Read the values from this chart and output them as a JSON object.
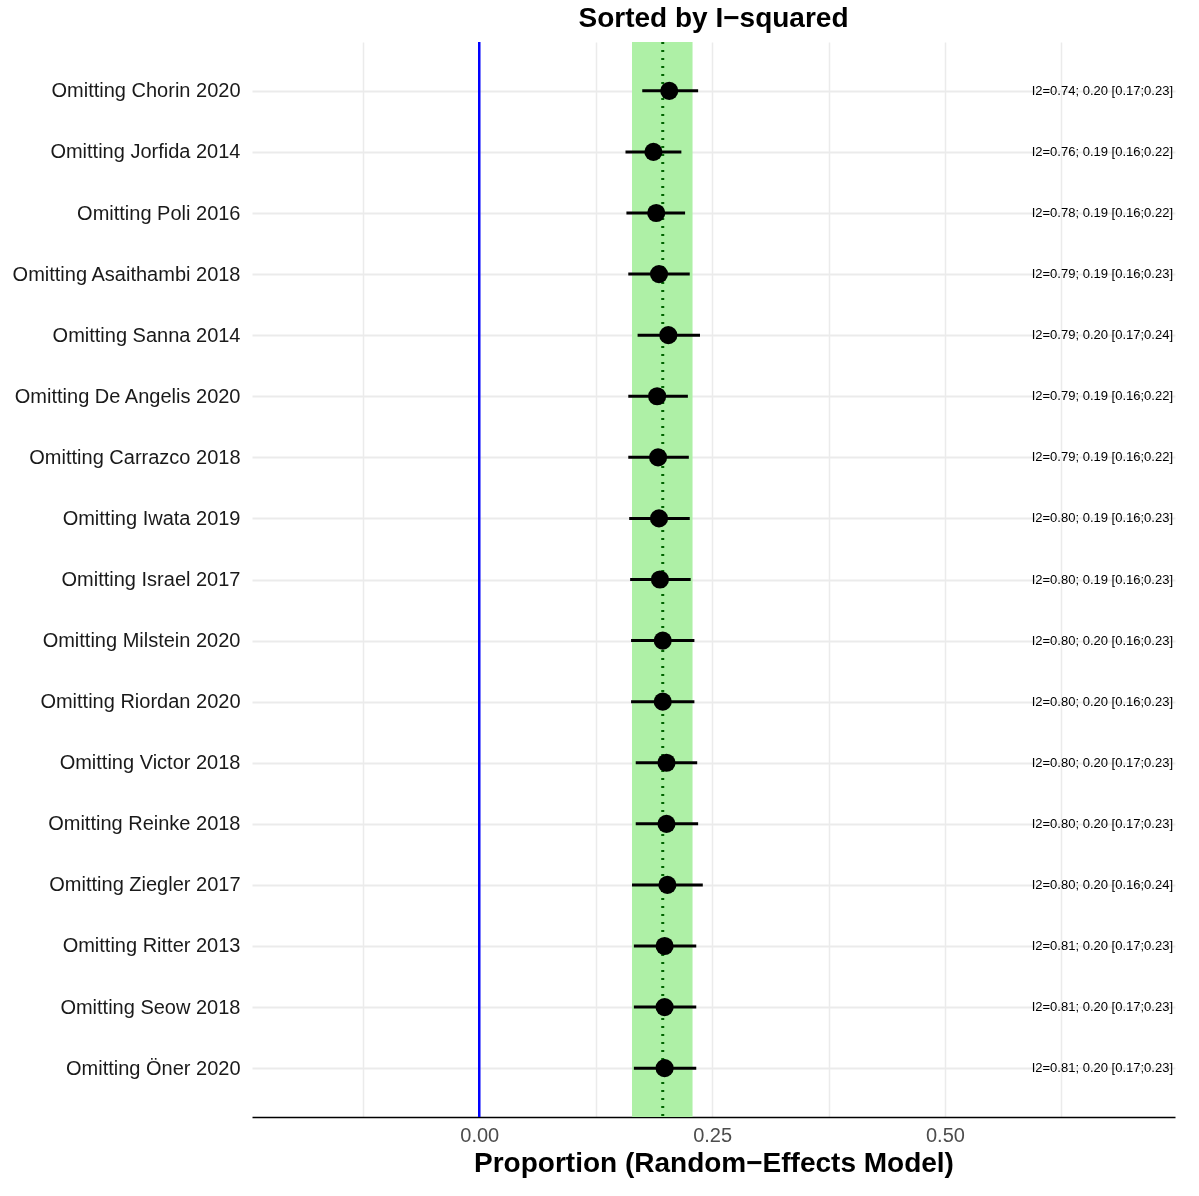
{
  "chart_data": {
    "type": "scatter",
    "orientation": "horizontal",
    "title": "Sorted by I−squared",
    "xlabel": "Proportion (Random−Effects Model)",
    "categories": [
      "Omitting Chorin 2020",
      "Omitting Jorfida 2014",
      "Omitting Poli 2016",
      "Omitting Asaithambi 2018",
      "Omitting Sanna 2014",
      "Omitting De Angelis 2020",
      "Omitting Carrazco 2018",
      "Omitting Iwata 2019",
      "Omitting Israel 2017",
      "Omitting Milstein 2020",
      "Omitting Riordan 2020",
      "Omitting Victor 2018",
      "Omitting Reinke 2018",
      "Omitting Ziegler 2017",
      "Omitting Ritter 2013",
      "Omitting Seow 2018",
      "Omitting Öner 2020"
    ],
    "series": [
      {
        "color": "#000000",
        "values": [
          0.204,
          0.187,
          0.19,
          0.193,
          0.203,
          0.191,
          0.192,
          0.193,
          0.194,
          0.197,
          0.197,
          0.201,
          0.201,
          0.202,
          0.199,
          0.199,
          0.199
        ],
        "errors": [
          [
            0.175,
            0.235
          ],
          [
            0.157,
            0.217
          ],
          [
            0.158,
            0.221
          ],
          [
            0.16,
            0.226
          ],
          [
            0.17,
            0.237
          ],
          [
            0.16,
            0.224
          ],
          [
            0.16,
            0.225
          ],
          [
            0.161,
            0.226
          ],
          [
            0.162,
            0.227
          ],
          [
            0.163,
            0.231
          ],
          [
            0.163,
            0.231
          ],
          [
            0.168,
            0.234
          ],
          [
            0.168,
            0.235
          ],
          [
            0.164,
            0.24
          ],
          [
            0.166,
            0.233
          ],
          [
            0.166,
            0.233
          ],
          [
            0.166,
            0.233
          ]
        ]
      }
    ],
    "annotations": [
      "I2=0.74; 0.20 [0.17;0.23]",
      "I2=0.76; 0.19 [0.16;0.22]",
      "I2=0.78; 0.19 [0.16;0.22]",
      "I2=0.79; 0.19 [0.16;0.23]",
      "I2=0.79; 0.20 [0.17;0.24]",
      "I2=0.79; 0.19 [0.16;0.22]",
      "I2=0.79; 0.19 [0.16;0.22]",
      "I2=0.80; 0.19 [0.16;0.23]",
      "I2=0.80; 0.19 [0.16;0.23]",
      "I2=0.80; 0.20 [0.16;0.23]",
      "I2=0.80; 0.20 [0.16;0.23]",
      "I2=0.80; 0.20 [0.17;0.23]",
      "I2=0.80; 0.20 [0.17;0.23]",
      "I2=0.80; 0.20 [0.16;0.24]",
      "I2=0.81; 0.20 [0.17;0.23]",
      "I2=0.81; 0.20 [0.17;0.23]",
      "I2=0.81; 0.20 [0.17;0.23]"
    ],
    "xlim": [
      -0.244,
      0.747
    ],
    "xticks": [
      {
        "value": -0.125,
        "label": null
      },
      {
        "value": 0,
        "label": "0.00"
      },
      {
        "value": 0.125,
        "label": null
      },
      {
        "value": 0.25,
        "label": "0.25"
      },
      {
        "value": 0.375,
        "label": null
      },
      {
        "value": 0.5,
        "label": "0.50"
      },
      {
        "value": 0.625,
        "label": null
      }
    ],
    "bands": [
      {
        "axis": "x",
        "from": 0.164,
        "to": 0.229,
        "color": "#aef0a6"
      }
    ],
    "ref_lines": [
      {
        "axis": "x",
        "value": 0,
        "color": "#0000ff",
        "line_style": "solid"
      },
      {
        "axis": "x",
        "value": 0.197,
        "color": "#006400",
        "line_style": "dotted"
      }
    ],
    "grid": true,
    "marker": "circle"
  }
}
